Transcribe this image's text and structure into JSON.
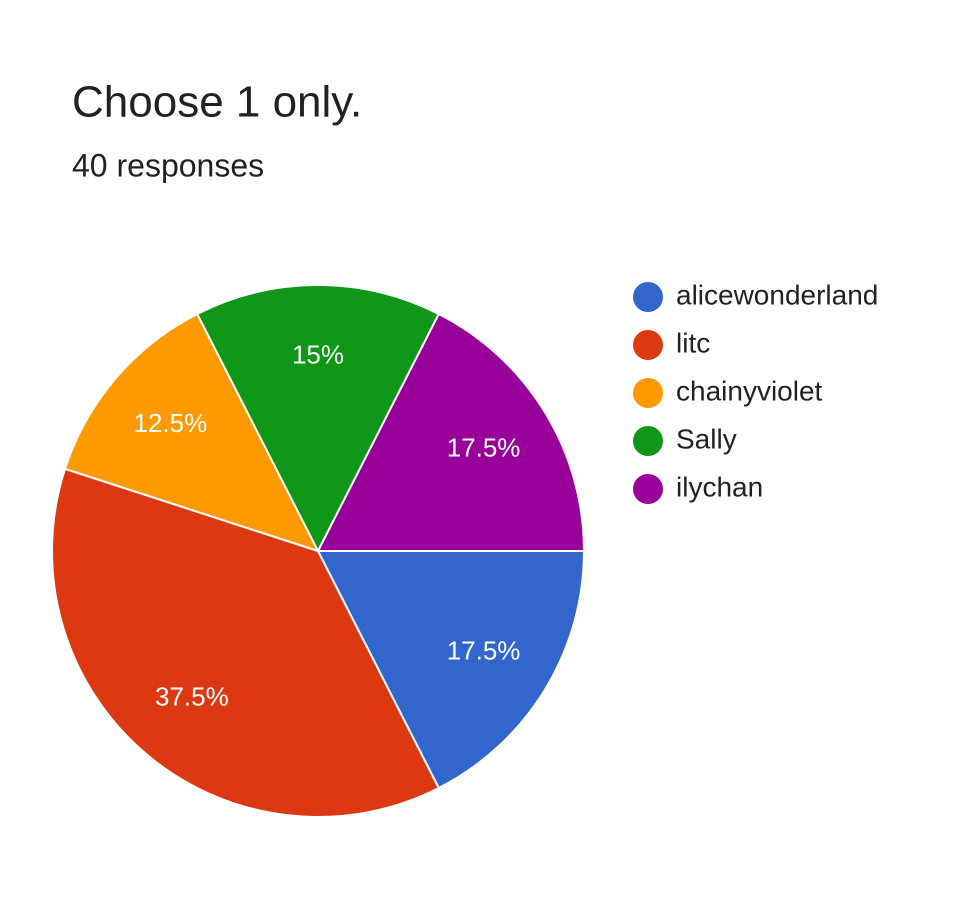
{
  "chart_data": {
    "type": "pie",
    "title": "Choose 1 only.",
    "subtitle": "40 responses",
    "categories": [
      "alicewonderland",
      "litc",
      "chainyviolet",
      "Sally",
      "ilychan"
    ],
    "values": [
      17.5,
      37.5,
      12.5,
      15,
      17.5
    ],
    "value_labels": [
      "17.5%",
      "37.5%",
      "12.5%",
      "15%",
      "17.5%"
    ],
    "colors": [
      "#3366cc",
      "#dc3912",
      "#ff9900",
      "#109618",
      "#990099"
    ],
    "legend": "right"
  }
}
